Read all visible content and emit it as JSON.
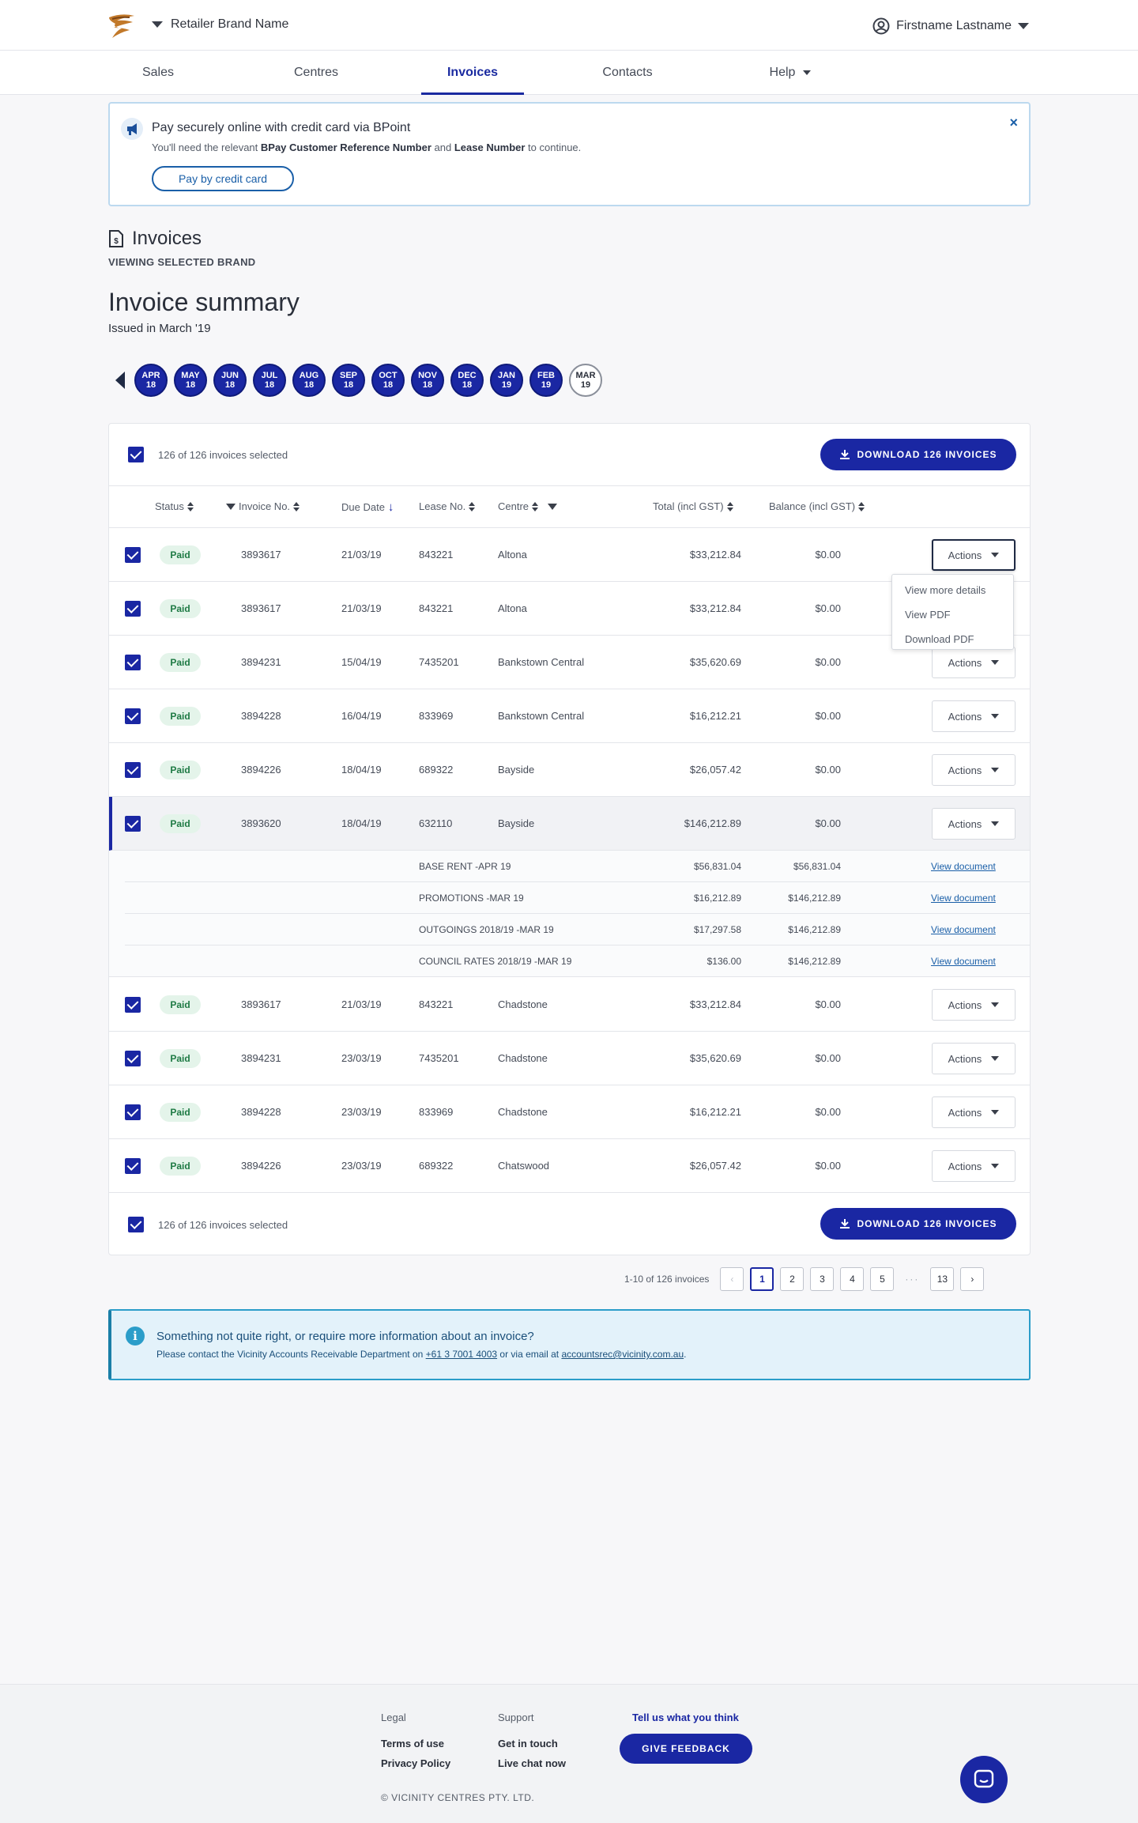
{
  "header": {
    "brand": "Retailer Brand Name",
    "user": "Firstname Lastname"
  },
  "nav": [
    "Sales",
    "Centres",
    "Invoices",
    "Contacts",
    "Help"
  ],
  "banner": {
    "title": "Pay securely online with credit card via BPoint",
    "sub_pre": "You'll need the relevant ",
    "sub_b1": "BPay Customer Reference Number",
    "sub_mid": " and ",
    "sub_b2": "Lease Number",
    "sub_post": " to continue.",
    "button": "Pay by credit card",
    "close": "×"
  },
  "invoices": {
    "title": "Invoices",
    "subtitle": "VIEWING SELECTED BRAND"
  },
  "summary": {
    "title": "Invoice summary",
    "subtitle": "Issued in March '19"
  },
  "months": [
    [
      "APR",
      "18"
    ],
    [
      "MAY",
      "18"
    ],
    [
      "JUN",
      "18"
    ],
    [
      "JUL",
      "18"
    ],
    [
      "AUG",
      "18"
    ],
    [
      "SEP",
      "18"
    ],
    [
      "OCT",
      "18"
    ],
    [
      "NOV",
      "18"
    ],
    [
      "DEC",
      "18"
    ],
    [
      "JAN",
      "19"
    ],
    [
      "FEB",
      "19"
    ],
    [
      "MAR",
      "19"
    ]
  ],
  "selection": {
    "text": "126 of 126 invoices selected",
    "download": "DOWNLOAD 126 INVOICES"
  },
  "columns": {
    "status": "Status",
    "invoice": "Invoice No.",
    "due": "Due Date",
    "lease": "Lease No.",
    "centre": "Centre",
    "total": "Total (incl GST)",
    "balance": "Balance (incl GST)"
  },
  "actions_label": "Actions",
  "menu": [
    "View more details",
    "View PDF",
    "Download PDF"
  ],
  "rows": [
    {
      "status": "Paid",
      "invoice": "3893617",
      "due": "21/03/19",
      "lease": "843221",
      "centre": "Altona",
      "total": "$33,212.84",
      "balance": "$0.00"
    },
    {
      "status": "Paid",
      "invoice": "3893617",
      "due": "21/03/19",
      "lease": "843221",
      "centre": "Altona",
      "total": "$33,212.84",
      "balance": "$0.00"
    },
    {
      "status": "Paid",
      "invoice": "3894231",
      "due": "15/04/19",
      "lease": "7435201",
      "centre": "Bankstown Central",
      "total": "$35,620.69",
      "balance": "$0.00"
    },
    {
      "status": "Paid",
      "invoice": "3894228",
      "due": "16/04/19",
      "lease": "833969",
      "centre": "Bankstown Central",
      "total": "$16,212.21",
      "balance": "$0.00"
    },
    {
      "status": "Paid",
      "invoice": "3894226",
      "due": "18/04/19",
      "lease": "689322",
      "centre": "Bayside",
      "total": "$26,057.42",
      "balance": "$0.00"
    },
    {
      "status": "Paid",
      "invoice": "3893620",
      "due": "18/04/19",
      "lease": "632110",
      "centre": "Bayside",
      "total": "$146,212.89",
      "balance": "$0.00"
    },
    {
      "status": "Paid",
      "invoice": "3893617",
      "due": "21/03/19",
      "lease": "843221",
      "centre": "Chadstone",
      "total": "$33,212.84",
      "balance": "$0.00"
    },
    {
      "status": "Paid",
      "invoice": "3894231",
      "due": "23/03/19",
      "lease": "7435201",
      "centre": "Chadstone",
      "total": "$35,620.69",
      "balance": "$0.00"
    },
    {
      "status": "Paid",
      "invoice": "3894228",
      "due": "23/03/19",
      "lease": "833969",
      "centre": "Chadstone",
      "total": "$16,212.21",
      "balance": "$0.00"
    },
    {
      "status": "Paid",
      "invoice": "3894226",
      "due": "23/03/19",
      "lease": "689322",
      "centre": "Chatswood",
      "total": "$26,057.42",
      "balance": "$0.00"
    }
  ],
  "sub_items": [
    {
      "desc": "BASE RENT -APR 19",
      "amount": "$56,831.04",
      "balance": "$56,831.04",
      "link": "View document"
    },
    {
      "desc": "PROMOTIONS -MAR 19",
      "amount": "$16,212.89",
      "balance": "$146,212.89",
      "link": "View document"
    },
    {
      "desc": "OUTGOINGS 2018/19 -MAR 19",
      "amount": "$17,297.58",
      "balance": "$146,212.89",
      "link": "View document"
    },
    {
      "desc": "COUNCIL RATES 2018/19 -MAR 19",
      "amount": "$136.00",
      "balance": "$146,212.89",
      "link": "View document"
    }
  ],
  "pagination": {
    "range": "1-10 of 126 invoices",
    "pages": [
      "1",
      "2",
      "3",
      "4",
      "5"
    ],
    "ellipsis": "···",
    "last": "13"
  },
  "info": {
    "title": "Something not quite right, or require more information about an invoice?",
    "pre": "Please contact the Vicinity Accounts Receivable Department on ",
    "phone": "+61 3 7001 4003",
    "mid": " or via email at ",
    "email": "accountsrec@vicinity.com.au",
    "post": "."
  },
  "footer": {
    "legal_h": "Legal",
    "legal": [
      "Terms of use",
      "Privacy Policy"
    ],
    "support_h": "Support",
    "support": [
      "Get in touch",
      "Live chat now"
    ],
    "feedback_t": "Tell us what you think",
    "feedback_b": "GIVE FEEDBACK",
    "copyright": "© VICINITY CENTRES PTY. LTD."
  }
}
